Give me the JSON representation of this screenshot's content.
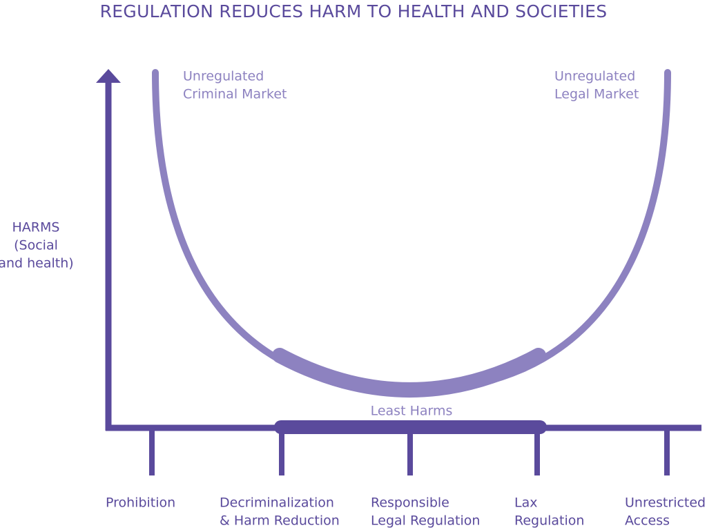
{
  "title": "REGULATION REDUCES HARM TO HEALTH AND SOCIETIES",
  "y_axis_label": [
    "HARMS",
    "(Social",
    "and health)"
  ],
  "curve_labels": [
    {
      "lines": [
        "Unregulated",
        "Criminal Market"
      ]
    },
    {
      "lines": [
        "Unregulated",
        "Legal Market"
      ]
    }
  ],
  "least_harms": "Least Harms",
  "scale": [
    {
      "lines": [
        "Prohibition"
      ]
    },
    {
      "lines": [
        "Decriminalization",
        "& Harm Reduction"
      ]
    },
    {
      "lines": [
        "Responsible",
        "Legal Regulation"
      ]
    },
    {
      "lines": [
        "Lax",
        "Regulation"
      ]
    },
    {
      "lines": [
        "Unrestricted",
        "Access"
      ]
    }
  ]
}
